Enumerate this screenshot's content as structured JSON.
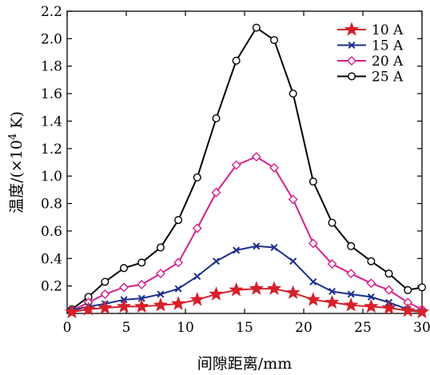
{
  "chart_data": {
    "type": "line",
    "xlabel": "间隙距离/mm",
    "ylabel_prefix": "温度/(×10",
    "ylabel_exp": "4",
    "ylabel_suffix": " K)",
    "xlim": [
      0,
      30
    ],
    "ylim": [
      0,
      2.2
    ],
    "xticks": [
      0,
      5,
      10,
      15,
      20,
      25,
      30
    ],
    "yticks": [
      0.2,
      0.4,
      0.6,
      0.8,
      1.0,
      1.2,
      1.4,
      1.6,
      1.8,
      2.0,
      2.2
    ],
    "ytick_labels": [
      "0.2",
      "0.4",
      "0.6",
      "0.8",
      "1.0",
      "1.2",
      "1.4",
      "1.6",
      "1.8",
      "2.0",
      "2.2"
    ],
    "grid": false,
    "legend_position": "top-right",
    "x": [
      0.4,
      1.8,
      3.2,
      4.8,
      6.3,
      7.9,
      9.4,
      11.0,
      12.6,
      14.3,
      16.0,
      17.5,
      19.1,
      20.8,
      22.4,
      24.0,
      25.7,
      27.2,
      28.8,
      30.0
    ],
    "series": [
      {
        "name": "10 A",
        "color": "#d6202a",
        "marker": "star",
        "values": [
          0.01,
          0.03,
          0.04,
          0.05,
          0.05,
          0.06,
          0.07,
          0.1,
          0.14,
          0.17,
          0.18,
          0.18,
          0.15,
          0.1,
          0.08,
          0.06,
          0.05,
          0.04,
          0.02,
          0.01
        ]
      },
      {
        "name": "15 A",
        "color": "#1c2f8c",
        "marker": "x",
        "values": [
          0.02,
          0.05,
          0.07,
          0.1,
          0.11,
          0.14,
          0.18,
          0.27,
          0.38,
          0.46,
          0.49,
          0.48,
          0.38,
          0.23,
          0.16,
          0.14,
          0.12,
          0.08,
          0.03,
          0.01
        ]
      },
      {
        "name": "20 A",
        "color": "#d61f8e",
        "marker": "diamond",
        "values": [
          0.02,
          0.08,
          0.14,
          0.19,
          0.21,
          0.29,
          0.37,
          0.62,
          0.88,
          1.08,
          1.14,
          1.06,
          0.83,
          0.51,
          0.36,
          0.29,
          0.22,
          0.17,
          0.08,
          0.03
        ]
      },
      {
        "name": "25 A",
        "color": "#000000",
        "marker": "circle",
        "values": [
          0.03,
          0.12,
          0.23,
          0.33,
          0.37,
          0.48,
          0.68,
          0.99,
          1.42,
          1.84,
          2.08,
          1.99,
          1.6,
          0.96,
          0.66,
          0.49,
          0.38,
          0.29,
          0.17,
          0.19
        ]
      }
    ]
  }
}
